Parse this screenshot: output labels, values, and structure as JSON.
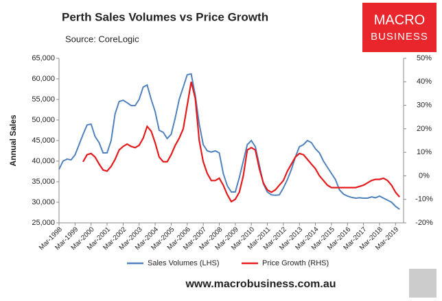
{
  "chart_data": {
    "type": "line",
    "title": "Perth Sales Volumes vs Price Growth",
    "subtitle": "Source: CoreLogic",
    "y_label": "Annual Sales",
    "categories": [
      "Mar-1998",
      null,
      null,
      null,
      "Mar-1999",
      null,
      null,
      null,
      "Mar-2000",
      null,
      null,
      null,
      "Mar-2001",
      null,
      null,
      null,
      "Mar-2002",
      null,
      null,
      null,
      "Mar-2003",
      null,
      null,
      null,
      "Mar-2004",
      null,
      null,
      null,
      "Mar-2005",
      null,
      null,
      null,
      "Mar-2006",
      null,
      null,
      null,
      "Mar-2007",
      null,
      null,
      null,
      "Mar-2008",
      null,
      null,
      null,
      "Mar-2009",
      null,
      null,
      null,
      "Mar-2010",
      null,
      null,
      null,
      "Mar-2011",
      null,
      null,
      null,
      "Mar-2012",
      null,
      null,
      null,
      "Mar-2013",
      null,
      null,
      null,
      "Mar-2014",
      null,
      null,
      null,
      "Mar-2015",
      null,
      null,
      null,
      "Mar-2016",
      null,
      null,
      null,
      "Mar-2017",
      null,
      null,
      null,
      "Mar-2018",
      null,
      null,
      null,
      "Mar-2019",
      null
    ],
    "series": [
      {
        "name": "Sales Volumes (LHS)",
        "color": "#4f81bd",
        "axis": "y",
        "values": [
          38000,
          40000,
          40500,
          40300,
          41500,
          44000,
          46500,
          48800,
          49000,
          46000,
          44500,
          42000,
          42000,
          45000,
          51500,
          54500,
          54800,
          54200,
          53500,
          53500,
          55000,
          58000,
          58500,
          55000,
          52000,
          47500,
          47000,
          45500,
          46500,
          50500,
          55000,
          58000,
          61000,
          61200,
          56000,
          49000,
          44000,
          42500,
          42200,
          42500,
          42000,
          37000,
          34000,
          32500,
          32500,
          36000,
          40000,
          44000,
          45000,
          43500,
          39000,
          34500,
          32500,
          31800,
          31700,
          31800,
          33500,
          35500,
          38000,
          41000,
          43500,
          44000,
          45000,
          44500,
          43000,
          42000,
          40000,
          38500,
          37000,
          35500,
          33000,
          32000,
          31500,
          31200,
          31000,
          31100,
          31000,
          31000,
          31300,
          31100,
          31500,
          31000,
          30500,
          30000,
          29000,
          28300
        ]
      },
      {
        "name": "Price Growth (RHS)",
        "color": "#e41a1c",
        "axis": "y2",
        "values": [
          null,
          null,
          null,
          null,
          null,
          null,
          6,
          9,
          9.5,
          8,
          5,
          2.5,
          2,
          4,
          7,
          11,
          12.5,
          13.5,
          12.5,
          12,
          13,
          16,
          21,
          19,
          14,
          8,
          6,
          6,
          9,
          13,
          16,
          20,
          30,
          40,
          33,
          15,
          6,
          1,
          -2,
          -2,
          -1,
          -4,
          -8,
          -11,
          -10,
          -7,
          0,
          11,
          12,
          11,
          3,
          -3,
          -6,
          -7,
          -6,
          -4,
          -2,
          2,
          5,
          8,
          9.5,
          9,
          7,
          5,
          3,
          0,
          -2,
          -4,
          -5,
          -5,
          -5,
          -5,
          -5,
          -5,
          -5,
          -4.5,
          -4,
          -3,
          -2,
          -1.5,
          -1.5,
          -1,
          -2,
          -4,
          -7,
          -9
        ]
      }
    ],
    "ylim": [
      25000,
      65000
    ],
    "yticks": [
      {
        "value": 25000,
        "label": "25,000"
      },
      {
        "value": 30000,
        "label": "30,000"
      },
      {
        "value": 35000,
        "label": "35,000"
      },
      {
        "value": 40000,
        "label": "40,000"
      },
      {
        "value": 45000,
        "label": "45,000"
      },
      {
        "value": 50000,
        "label": "50,000"
      },
      {
        "value": 55000,
        "label": "55,000"
      },
      {
        "value": 60000,
        "label": "60,000"
      },
      {
        "value": 65000,
        "label": "65,000"
      }
    ],
    "y2lim": [
      -20,
      50
    ],
    "y2ticks": [
      {
        "value": -20,
        "label": "-20%"
      },
      {
        "value": -10,
        "label": "-10%"
      },
      {
        "value": 0,
        "label": "0%"
      },
      {
        "value": 10,
        "label": "10%"
      },
      {
        "value": 20,
        "label": "20%"
      },
      {
        "value": 30,
        "label": "30%"
      },
      {
        "value": 40,
        "label": "40%"
      },
      {
        "value": 50,
        "label": "50%"
      }
    ],
    "legend": "bottom"
  },
  "logo": {
    "line1": "MACRO",
    "line2": "BUSINESS"
  },
  "website": "www.macrobusiness.com.au"
}
